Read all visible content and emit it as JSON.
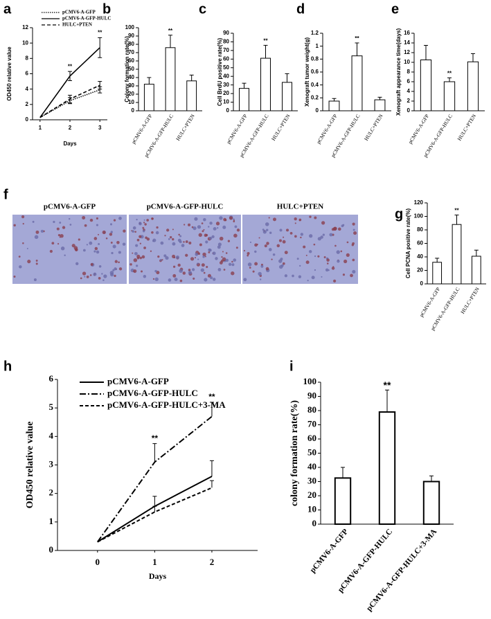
{
  "chart_data": [
    {
      "type": "line",
      "label": "a",
      "xlabel": "Days",
      "ylabel": "OD450 relative value",
      "x": [
        1,
        2,
        3
      ],
      "xlim": [
        0.75,
        3.25
      ],
      "ylim": [
        0,
        12
      ],
      "yticks": [
        0,
        2,
        4,
        6,
        8,
        10,
        12
      ],
      "series": [
        {
          "name": "pCMV6-A-GFP",
          "color": "#000000",
          "line_style": "dotted",
          "values": [
            0.3,
            2.5,
            3.9
          ],
          "errors": [
            null,
            0.4,
            0.4
          ],
          "significance": [
            null,
            null,
            null
          ]
        },
        {
          "name": "pCMV6-A-GFP-HULC",
          "color": "#000000",
          "line_style": "solid",
          "values": [
            0.3,
            5.7,
            9.4
          ],
          "errors": [
            null,
            0.6,
            1.3
          ],
          "significance": [
            null,
            "**",
            "**"
          ]
        },
        {
          "name": "HULC+PTEN",
          "color": "#000000",
          "line_style": "dashed",
          "values": [
            0.3,
            2.7,
            4.5
          ],
          "errors": [
            null,
            0.5,
            0.5
          ],
          "significance": [
            null,
            null,
            null
          ]
        }
      ]
    },
    {
      "type": "bar",
      "label": "b",
      "ylabel": "Colony formation rate(%)",
      "color": "#ffffff",
      "categories": [
        "pCMV6-A-GFP",
        "pCMV6-A-GFP-HULC",
        "HULC+PTEN"
      ],
      "values": [
        32,
        76,
        36
      ],
      "errors": [
        8,
        15,
        7
      ],
      "significance": [
        null,
        "**",
        null
      ],
      "ylim": [
        0,
        100
      ],
      "yticks": [
        0,
        10,
        20,
        30,
        40,
        50,
        60,
        70,
        80,
        90,
        100
      ]
    },
    {
      "type": "bar",
      "label": "c",
      "ylabel": "Cell BrdU positive rate(%)",
      "color": "#ffffff",
      "categories": [
        "pCMV6-A-GFP",
        "pCMV6-A-GFP-HULC",
        "HULC+PTEN"
      ],
      "values": [
        26,
        61,
        33
      ],
      "errors": [
        6,
        15,
        10
      ],
      "significance": [
        null,
        "**",
        null
      ],
      "ylim": [
        0,
        90
      ],
      "yticks": [
        0,
        10,
        20,
        30,
        40,
        50,
        60,
        70,
        80,
        90
      ]
    },
    {
      "type": "bar",
      "label": "d",
      "ylabel": "Xenograft tumor weight(g)",
      "color": "#ffffff",
      "categories": [
        "pCMV6-A-GFP",
        "pCMV6-A-GFP-HULC",
        "HULC+PTEN"
      ],
      "values": [
        0.15,
        0.85,
        0.17
      ],
      "errors": [
        0.04,
        0.2,
        0.04
      ],
      "significance": [
        null,
        "**",
        null
      ],
      "ylim": [
        0,
        1.2
      ],
      "yticks": [
        0,
        0.2,
        0.4,
        0.6,
        0.8,
        1,
        1.2
      ]
    },
    {
      "type": "bar",
      "label": "e",
      "ylabel": "Xenograft appearance time(days)",
      "color": "#ffffff",
      "categories": [
        "pCMV6-A-GFP",
        "pCMV6-A-GFP-HULC",
        "HULC+PTEN"
      ],
      "values": [
        10.5,
        6,
        10.1
      ],
      "errors": [
        3,
        0.8,
        1.7
      ],
      "significance": [
        null,
        "**",
        null
      ],
      "ylim": [
        0,
        16
      ],
      "yticks": [
        0,
        2,
        4,
        6,
        8,
        10,
        12,
        14,
        16
      ]
    },
    {
      "type": "bar",
      "label": "g",
      "ylabel": "Cell PCNA positive rate(%)",
      "color": "#ffffff",
      "categories": [
        "pCMV6-A-GFP",
        "pCMV6-A-GFP-HULC",
        "HULC+PTEN"
      ],
      "values": [
        32,
        88,
        41
      ],
      "errors": [
        6,
        14,
        9
      ],
      "significance": [
        null,
        "**",
        null
      ],
      "ylim": [
        0,
        120
      ],
      "yticks": [
        0,
        20,
        40,
        60,
        80,
        100,
        120
      ]
    },
    {
      "type": "line",
      "label": "h",
      "xlabel": "Days",
      "ylabel": "OD450 relative value",
      "x": [
        0,
        1,
        2
      ],
      "xlim": [
        -0.7,
        2.8
      ],
      "ylim": [
        0,
        6
      ],
      "yticks": [
        0,
        1,
        2,
        3,
        4,
        5,
        6
      ],
      "series": [
        {
          "name": "pCMV6-A-GFP",
          "color": "#000000",
          "line_style": "solid",
          "values": [
            0.3,
            1.55,
            2.6
          ],
          "errors": [
            null,
            0.35,
            0.55
          ],
          "significance": [
            null,
            null,
            null
          ]
        },
        {
          "name": "pCMV6-A-GFP-HULC",
          "color": "#000000",
          "line_style": "dashdot",
          "values": [
            0.3,
            3.1,
            4.7
          ],
          "errors": [
            null,
            0.65,
            0.5
          ],
          "significance": [
            null,
            "**",
            "**"
          ]
        },
        {
          "name": "pCMV6-A-GFP-HULC+3-MA",
          "color": "#000000",
          "line_style": "dashed",
          "values": [
            0.3,
            1.35,
            2.2
          ],
          "errors": [
            null,
            0.2,
            0.25
          ],
          "significance": [
            null,
            null,
            null
          ]
        }
      ]
    },
    {
      "type": "bar",
      "label": "i",
      "ylabel": "colony formation rate(%)",
      "color": "#ffffff",
      "categories": [
        "pCMV6-A-GFP",
        "pCMV6-A-GFP-HULC",
        "pCMV6-A-GFP-HULC+3-MA"
      ],
      "values": [
        32.5,
        79,
        30
      ],
      "errors": [
        7.5,
        15.5,
        4
      ],
      "significance": [
        null,
        "**",
        null
      ],
      "ylim": [
        0,
        100
      ],
      "yticks": [
        0,
        10,
        20,
        30,
        40,
        50,
        60,
        70,
        80,
        90,
        100
      ]
    }
  ],
  "image_panel": {
    "label": "f",
    "titles": [
      "pCMV6-A-GFP",
      "pCMV6-A-GFP-HULC",
      "HULC+PTEN"
    ]
  }
}
